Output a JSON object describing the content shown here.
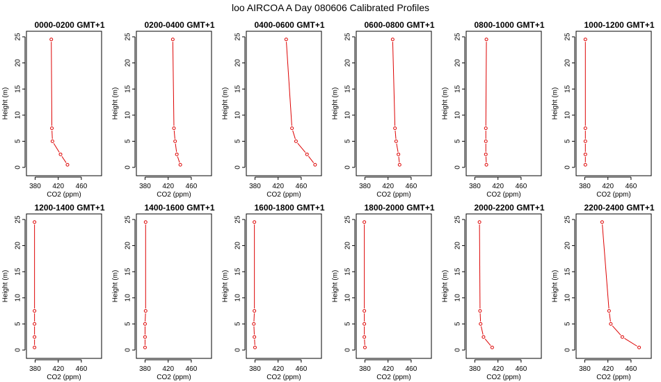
{
  "title": "loo AIRCOA A  Day 080606  Calibrated Profiles",
  "colors": {
    "line": "#dd0000",
    "axis": "#000000",
    "background": "#ffffff"
  },
  "chart_data": [
    {
      "type": "line",
      "title": "0000-0200 GMT+1",
      "xlabel": "CO2 (ppm)",
      "ylabel": "Height (m)",
      "xlim": [
        365,
        495
      ],
      "ylim": [
        0,
        25
      ],
      "xticks": [
        380,
        420,
        460
      ],
      "yticks": [
        0,
        5,
        10,
        15,
        20,
        25
      ],
      "series": [
        {
          "x": [
            436,
            424,
            410,
            409,
            408
          ],
          "y": [
            0.5,
            2.5,
            5,
            7.5,
            24.5
          ]
        }
      ]
    },
    {
      "type": "line",
      "title": "0200-0400 GMT+1",
      "xlabel": "CO2 (ppm)",
      "ylabel": "Height (m)",
      "xlim": [
        365,
        495
      ],
      "ylim": [
        0,
        25
      ],
      "xticks": [
        380,
        420,
        460
      ],
      "yticks": [
        0,
        5,
        10,
        15,
        20,
        25
      ],
      "series": [
        {
          "x": [
            441,
            435,
            432,
            430,
            428
          ],
          "y": [
            0.5,
            2.5,
            5,
            7.5,
            24.5
          ]
        }
      ]
    },
    {
      "type": "line",
      "title": "0400-0600 GMT+1",
      "xlabel": "CO2 (ppm)",
      "ylabel": "Height (m)",
      "xlim": [
        365,
        495
      ],
      "ylim": [
        0,
        25
      ],
      "xticks": [
        380,
        420,
        460
      ],
      "yticks": [
        0,
        5,
        10,
        15,
        20,
        25
      ],
      "series": [
        {
          "x": [
            484,
            470,
            451,
            444,
            434
          ],
          "y": [
            0.5,
            2.5,
            5,
            7.5,
            24.5
          ]
        }
      ]
    },
    {
      "type": "line",
      "title": "0600-0800 GMT+1",
      "xlabel": "CO2 (ppm)",
      "ylabel": "Height (m)",
      "xlim": [
        365,
        495
      ],
      "ylim": [
        0,
        25
      ],
      "xticks": [
        380,
        420,
        460
      ],
      "yticks": [
        0,
        5,
        10,
        15,
        20,
        25
      ],
      "series": [
        {
          "x": [
            440,
            438,
            434,
            432,
            428
          ],
          "y": [
            0.5,
            2.5,
            5,
            7.5,
            24.5
          ]
        }
      ]
    },
    {
      "type": "line",
      "title": "0800-1000 GMT+1",
      "xlabel": "CO2 (ppm)",
      "ylabel": "Height (m)",
      "xlim": [
        365,
        495
      ],
      "ylim": [
        0,
        25
      ],
      "xticks": [
        380,
        420,
        460
      ],
      "yticks": [
        0,
        5,
        10,
        15,
        20,
        25
      ],
      "series": [
        {
          "x": [
            400,
            399,
            399,
            399,
            400
          ],
          "y": [
            0.5,
            2.5,
            5,
            7.5,
            24.5
          ]
        }
      ]
    },
    {
      "type": "line",
      "title": "1000-1200 GMT+1",
      "xlabel": "CO2 (ppm)",
      "ylabel": "Height (m)",
      "xlim": [
        365,
        495
      ],
      "ylim": [
        0,
        25
      ],
      "xticks": [
        380,
        420,
        460
      ],
      "yticks": [
        0,
        5,
        10,
        15,
        20,
        25
      ],
      "series": [
        {
          "x": [
            381,
            381,
            381,
            381,
            381
          ],
          "y": [
            0.5,
            2.5,
            5,
            7.5,
            24.5
          ]
        }
      ]
    },
    {
      "type": "line",
      "title": "1200-1400 GMT+1",
      "xlabel": "CO2 (ppm)",
      "ylabel": "Height (m)",
      "xlim": [
        365,
        495
      ],
      "ylim": [
        0,
        25
      ],
      "xticks": [
        380,
        420,
        460
      ],
      "yticks": [
        0,
        5,
        10,
        15,
        20,
        25
      ],
      "series": [
        {
          "x": [
            379,
            379,
            379,
            379,
            379
          ],
          "y": [
            0.5,
            2.5,
            5,
            7.5,
            24.5
          ]
        }
      ]
    },
    {
      "type": "line",
      "title": "1400-1600 GMT+1",
      "xlabel": "CO2 (ppm)",
      "ylabel": "Height (m)",
      "xlim": [
        365,
        495
      ],
      "ylim": [
        0,
        25
      ],
      "xticks": [
        380,
        420,
        460
      ],
      "yticks": [
        0,
        5,
        10,
        15,
        20,
        25
      ],
      "series": [
        {
          "x": [
            380,
            380,
            380,
            381,
            381
          ],
          "y": [
            0.5,
            2.5,
            5,
            7.5,
            24.5
          ]
        }
      ]
    },
    {
      "type": "line",
      "title": "1600-1800 GMT+1",
      "xlabel": "CO2 (ppm)",
      "ylabel": "Height (m)",
      "xlim": [
        365,
        495
      ],
      "ylim": [
        0,
        25
      ],
      "xticks": [
        380,
        420,
        460
      ],
      "yticks": [
        0,
        5,
        10,
        15,
        20,
        25
      ],
      "series": [
        {
          "x": [
            380,
            379,
            378,
            379,
            379
          ],
          "y": [
            0.5,
            2.5,
            5,
            7.5,
            24.5
          ]
        }
      ]
    },
    {
      "type": "line",
      "title": "1800-2000 GMT+1",
      "xlabel": "CO2 (ppm)",
      "ylabel": "Height (m)",
      "xlim": [
        365,
        495
      ],
      "ylim": [
        0,
        25
      ],
      "xticks": [
        380,
        420,
        460
      ],
      "yticks": [
        0,
        5,
        10,
        15,
        20,
        25
      ],
      "series": [
        {
          "x": [
            380,
            379,
            379,
            379,
            379
          ],
          "y": [
            0.5,
            2.5,
            5,
            7.5,
            24.5
          ]
        }
      ]
    },
    {
      "type": "line",
      "title": "2000-2200 GMT+1",
      "xlabel": "CO2 (ppm)",
      "ylabel": "Height (m)",
      "xlim": [
        365,
        495
      ],
      "ylim": [
        0,
        25
      ],
      "xticks": [
        380,
        420,
        460
      ],
      "yticks": [
        0,
        5,
        10,
        15,
        20,
        25
      ],
      "series": [
        {
          "x": [
            410,
            395,
            390,
            389,
            388
          ],
          "y": [
            0.5,
            2.5,
            5,
            7.5,
            24.5
          ]
        }
      ]
    },
    {
      "type": "line",
      "title": "2200-2400 GMT+1",
      "xlabel": "CO2 (ppm)",
      "ylabel": "Height (m)",
      "xlim": [
        365,
        495
      ],
      "ylim": [
        0,
        25
      ],
      "xticks": [
        380,
        420,
        460
      ],
      "yticks": [
        0,
        5,
        10,
        15,
        20,
        25
      ],
      "series": [
        {
          "x": [
            474,
            445,
            425,
            422,
            410
          ],
          "y": [
            0.5,
            2.5,
            5,
            7.5,
            24.5
          ]
        }
      ]
    }
  ]
}
